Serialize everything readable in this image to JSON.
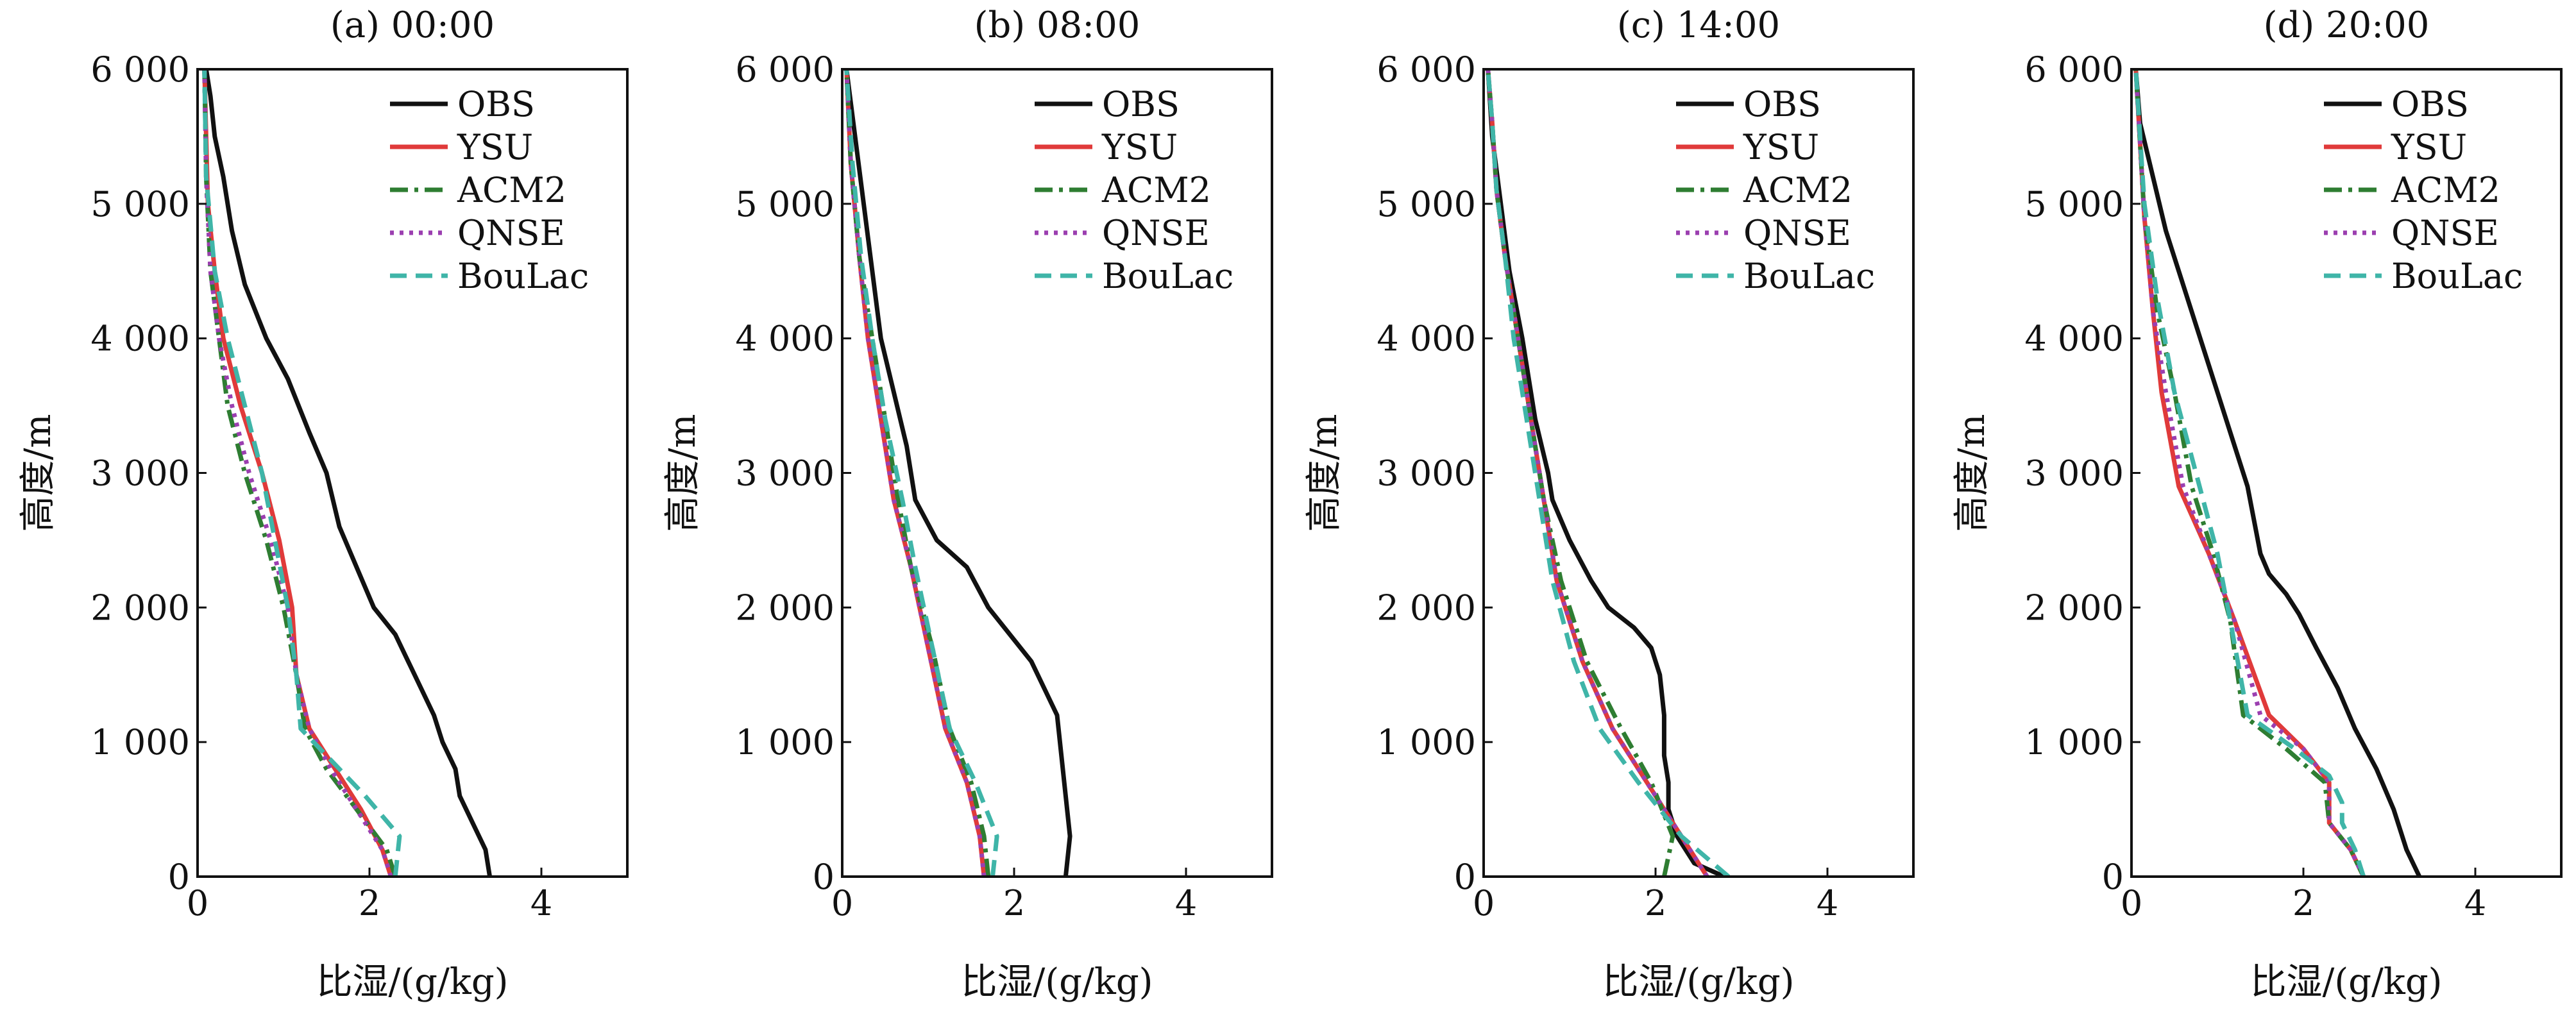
{
  "chart_data": [
    {
      "type": "line",
      "title": "(a) 00:00",
      "xlabel": "比湿/(g/kg)",
      "ylabel": "高度/m",
      "xlim": [
        0,
        5
      ],
      "ylim": [
        0,
        6000
      ],
      "xticks": [
        "0",
        "2",
        "4"
      ],
      "yticks": [
        "0",
        "1 000",
        "2 000",
        "3 000",
        "4 000",
        "5 000",
        "6 000"
      ],
      "legend": "top-right",
      "series": [
        {
          "name": "OBS",
          "x": [
            3.4,
            3.35,
            3.2,
            3.05,
            3.0,
            2.85,
            2.75,
            2.6,
            2.45,
            2.3,
            2.05,
            1.85,
            1.65,
            1.5,
            1.3,
            1.05,
            0.8,
            0.55,
            0.4,
            0.3,
            0.2,
            0.15,
            0.1
          ],
          "y": [
            0,
            200,
            400,
            600,
            800,
            1000,
            1200,
            1400,
            1600,
            1800,
            2000,
            2300,
            2600,
            3000,
            3300,
            3700,
            4000,
            4400,
            4800,
            5200,
            5500,
            5800,
            6000
          ]
        },
        {
          "name": "YSU",
          "x": [
            2.25,
            2.15,
            1.9,
            1.6,
            1.3,
            1.15,
            1.1,
            0.95,
            0.75,
            0.5,
            0.3,
            0.2,
            0.12,
            0.1,
            0.08
          ],
          "y": [
            0,
            200,
            500,
            800,
            1100,
            1500,
            2000,
            2500,
            3000,
            3500,
            4000,
            4500,
            5000,
            5500,
            6000
          ]
        },
        {
          "name": "ACM2",
          "x": [
            2.3,
            2.2,
            1.85,
            1.5,
            1.25,
            1.15,
            1.0,
            0.8,
            0.55,
            0.35,
            0.25,
            0.15,
            0.1,
            0.08
          ],
          "y": [
            0,
            200,
            500,
            800,
            1100,
            1500,
            2000,
            2500,
            3000,
            3500,
            4000,
            4500,
            5200,
            6000
          ]
        },
        {
          "name": "QNSE",
          "x": [
            2.25,
            2.15,
            1.85,
            1.55,
            1.3,
            1.15,
            1.05,
            0.85,
            0.6,
            0.4,
            0.25,
            0.15,
            0.1,
            0.08
          ],
          "y": [
            0,
            200,
            500,
            800,
            1100,
            1500,
            2000,
            2500,
            3000,
            3500,
            4000,
            4500,
            5200,
            6000
          ]
        },
        {
          "name": "BouLac",
          "x": [
            2.3,
            2.35,
            1.95,
            1.5,
            1.2,
            1.15,
            1.05,
            0.9,
            0.75,
            0.55,
            0.35,
            0.2,
            0.1,
            0.08
          ],
          "y": [
            0,
            300,
            600,
            900,
            1100,
            1500,
            2000,
            2500,
            3000,
            3500,
            4000,
            4500,
            5200,
            6000
          ]
        }
      ]
    },
    {
      "type": "line",
      "title": "(b) 08:00",
      "xlabel": "比湿/(g/kg)",
      "ylabel": "高度/m",
      "xlim": [
        0,
        5
      ],
      "ylim": [
        0,
        6000
      ],
      "xticks": [
        "0",
        "2",
        "4"
      ],
      "yticks": [
        "0",
        "1 000",
        "2 000",
        "3 000",
        "4 000",
        "5 000",
        "6 000"
      ],
      "legend": "top-right",
      "series": [
        {
          "name": "OBS",
          "x": [
            2.6,
            2.65,
            2.6,
            2.55,
            2.5,
            2.35,
            2.2,
            1.95,
            1.7,
            1.45,
            1.1,
            0.85,
            0.75,
            0.6,
            0.45,
            0.35,
            0.25,
            0.15,
            0.05
          ],
          "y": [
            0,
            300,
            600,
            900,
            1200,
            1400,
            1600,
            1800,
            2000,
            2300,
            2500,
            2800,
            3200,
            3600,
            4000,
            4500,
            5000,
            5500,
            6000
          ]
        },
        {
          "name": "YSU",
          "x": [
            1.65,
            1.6,
            1.45,
            1.2,
            1.0,
            0.8,
            0.6,
            0.45,
            0.3,
            0.2,
            0.1,
            0.05
          ],
          "y": [
            0,
            300,
            700,
            1100,
            1700,
            2300,
            2800,
            3400,
            4000,
            4600,
            5300,
            6000
          ]
        },
        {
          "name": "ACM2",
          "x": [
            1.7,
            1.65,
            1.5,
            1.25,
            1.05,
            0.8,
            0.65,
            0.5,
            0.35,
            0.2,
            0.1,
            0.05
          ],
          "y": [
            0,
            300,
            700,
            1100,
            1700,
            2300,
            2800,
            3400,
            4000,
            4600,
            5300,
            6000
          ]
        },
        {
          "name": "QNSE",
          "x": [
            1.65,
            1.6,
            1.45,
            1.2,
            1.0,
            0.8,
            0.6,
            0.45,
            0.3,
            0.2,
            0.1,
            0.05
          ],
          "y": [
            0,
            300,
            700,
            1100,
            1700,
            2300,
            2800,
            3400,
            4000,
            4600,
            5300,
            6000
          ]
        },
        {
          "name": "BouLac",
          "x": [
            1.75,
            1.8,
            1.55,
            1.25,
            1.05,
            0.85,
            0.7,
            0.5,
            0.35,
            0.22,
            0.12,
            0.05
          ],
          "y": [
            0,
            300,
            700,
            1100,
            1700,
            2300,
            2800,
            3400,
            4000,
            4600,
            5300,
            6000
          ]
        }
      ]
    },
    {
      "type": "line",
      "title": "(c) 14:00",
      "xlabel": "比湿/(g/kg)",
      "ylabel": "高度/m",
      "xlim": [
        0,
        5
      ],
      "ylim": [
        0,
        6000
      ],
      "xticks": [
        "0",
        "2",
        "4"
      ],
      "yticks": [
        "0",
        "1 000",
        "2 000",
        "3 000",
        "4 000",
        "5 000",
        "6 000"
      ],
      "legend": "top-right",
      "series": [
        {
          "name": "OBS",
          "x": [
            2.8,
            2.45,
            2.25,
            2.15,
            2.15,
            2.1,
            2.1,
            2.05,
            1.95,
            1.75,
            1.45,
            1.25,
            1.0,
            0.8,
            0.75,
            0.6,
            0.45,
            0.3,
            0.2,
            0.1,
            0.05
          ],
          "y": [
            0,
            100,
            300,
            500,
            700,
            900,
            1200,
            1500,
            1700,
            1850,
            2000,
            2200,
            2500,
            2800,
            3000,
            3400,
            4000,
            4500,
            5000,
            5500,
            6000
          ]
        },
        {
          "name": "YSU",
          "x": [
            2.6,
            2.3,
            1.9,
            1.5,
            1.15,
            0.85,
            0.7,
            0.55,
            0.4,
            0.25,
            0.15,
            0.1,
            0.05
          ],
          "y": [
            0,
            300,
            700,
            1100,
            1600,
            2200,
            2800,
            3400,
            4000,
            4600,
            5100,
            5600,
            6000
          ]
        },
        {
          "name": "ACM2",
          "x": [
            2.1,
            2.2,
            1.95,
            1.6,
            1.2,
            0.9,
            0.7,
            0.55,
            0.4,
            0.25,
            0.15,
            0.1,
            0.05
          ],
          "y": [
            0,
            300,
            700,
            1100,
            1600,
            2200,
            2800,
            3400,
            4000,
            4600,
            5100,
            5600,
            6000
          ]
        },
        {
          "name": "QNSE",
          "x": [
            2.6,
            2.3,
            1.9,
            1.5,
            1.15,
            0.85,
            0.7,
            0.55,
            0.4,
            0.25,
            0.15,
            0.1,
            0.05
          ],
          "y": [
            0,
            300,
            700,
            1100,
            1600,
            2200,
            2800,
            3400,
            4000,
            4600,
            5100,
            5600,
            6000
          ]
        },
        {
          "name": "BouLac",
          "x": [
            2.85,
            2.3,
            1.8,
            1.35,
            1.05,
            0.8,
            0.65,
            0.5,
            0.35,
            0.25,
            0.15,
            0.1,
            0.05
          ],
          "y": [
            0,
            300,
            700,
            1100,
            1600,
            2200,
            2800,
            3400,
            4000,
            4600,
            5100,
            5600,
            6000
          ]
        }
      ]
    },
    {
      "type": "line",
      "title": "(d) 20:00",
      "xlabel": "比湿/(g/kg)",
      "ylabel": "高度/m",
      "xlim": [
        0,
        5
      ],
      "ylim": [
        0,
        6000
      ],
      "xticks": [
        "0",
        "2",
        "4"
      ],
      "yticks": [
        "0",
        "1 000",
        "2 000",
        "3 000",
        "4 000",
        "5 000",
        "6 000"
      ],
      "legend": "top-right",
      "series": [
        {
          "name": "OBS",
          "x": [
            3.35,
            3.2,
            3.05,
            2.85,
            2.6,
            2.4,
            2.15,
            1.95,
            1.8,
            1.6,
            1.5,
            1.35,
            1.05,
            0.8,
            0.6,
            0.4,
            0.25,
            0.1,
            0.05
          ],
          "y": [
            0,
            200,
            500,
            800,
            1100,
            1400,
            1700,
            1950,
            2100,
            2250,
            2400,
            2900,
            3500,
            4000,
            4400,
            4800,
            5200,
            5600,
            6000
          ]
        },
        {
          "name": "YSU",
          "x": [
            2.7,
            2.55,
            2.3,
            2.3,
            2.0,
            1.6,
            1.2,
            0.9,
            0.55,
            0.35,
            0.25,
            0.15,
            0.05
          ],
          "y": [
            0,
            200,
            400,
            700,
            950,
            1200,
            1900,
            2400,
            2900,
            3600,
            4200,
            4900,
            6000
          ]
        },
        {
          "name": "ACM2",
          "x": [
            2.7,
            2.55,
            2.3,
            2.25,
            1.8,
            1.3,
            1.15,
            0.95,
            0.7,
            0.5,
            0.3,
            0.15,
            0.05
          ],
          "y": [
            0,
            200,
            400,
            700,
            950,
            1200,
            1900,
            2400,
            2900,
            3600,
            4200,
            4900,
            6000
          ]
        },
        {
          "name": "QNSE",
          "x": [
            2.7,
            2.55,
            2.3,
            2.3,
            2.0,
            1.5,
            1.2,
            0.9,
            0.6,
            0.4,
            0.25,
            0.15,
            0.05
          ],
          "y": [
            0,
            200,
            400,
            700,
            950,
            1200,
            1900,
            2400,
            2900,
            3600,
            4200,
            4900,
            6000
          ]
        },
        {
          "name": "BouLac",
          "x": [
            2.7,
            2.6,
            2.45,
            2.45,
            2.3,
            1.9,
            1.35,
            1.15,
            1.0,
            0.75,
            0.5,
            0.3,
            0.15,
            0.05
          ],
          "y": [
            0,
            200,
            400,
            550,
            750,
            950,
            1200,
            1900,
            2400,
            3000,
            3600,
            4300,
            5000,
            6000
          ]
        }
      ]
    }
  ],
  "colors": {
    "OBS": "#111111",
    "YSU": "#e03a3a",
    "ACM2": "#2e7d32",
    "QNSE": "#9b3fb0",
    "BouLac": "#3fb5a8"
  }
}
